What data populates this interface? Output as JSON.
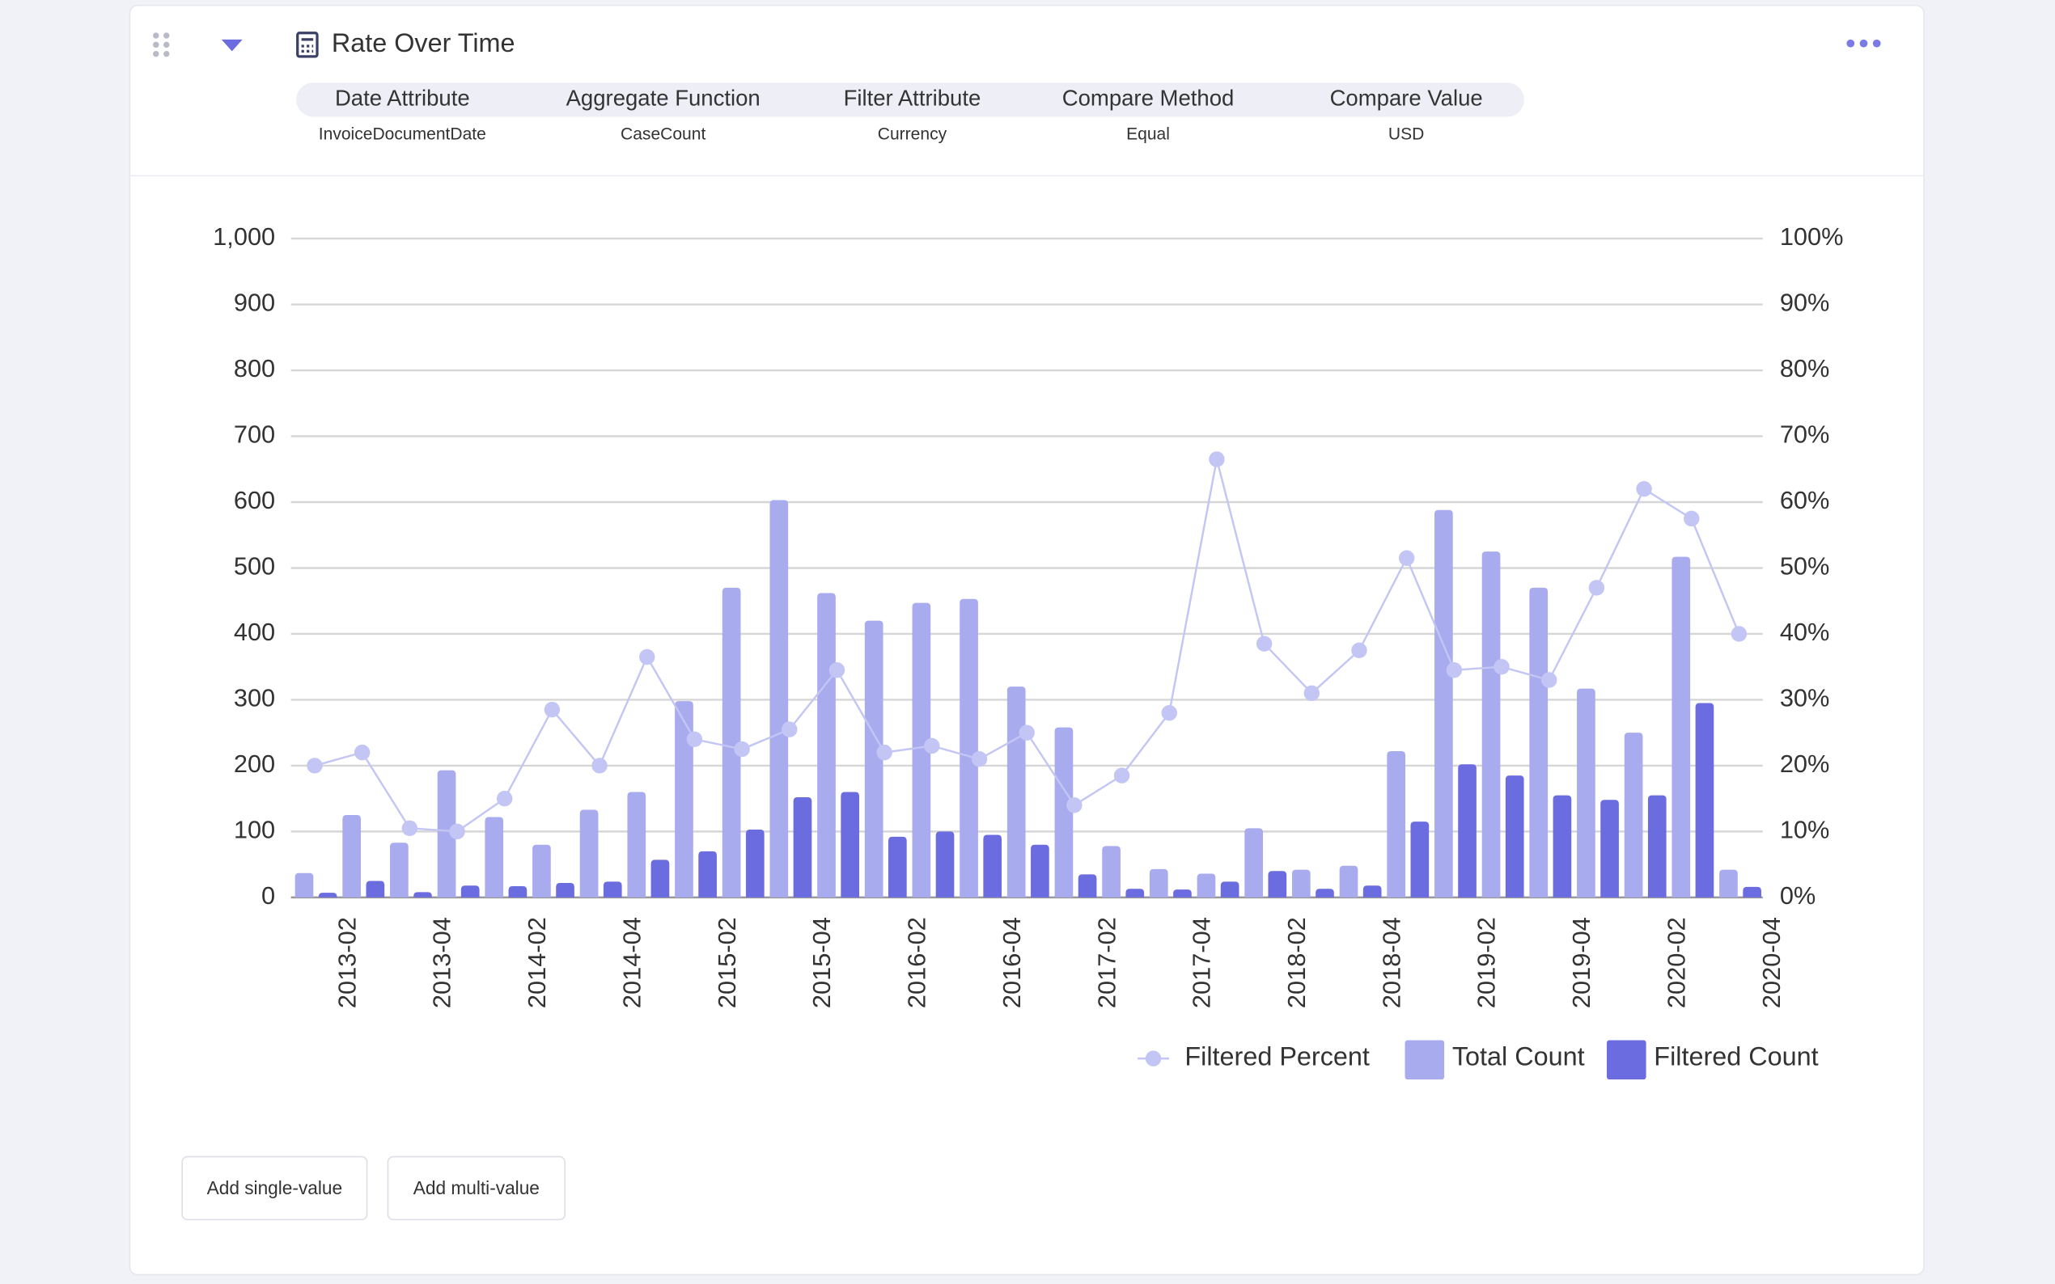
{
  "header": {
    "title": "Rate Over Time",
    "filters": [
      {
        "label": "Date Attribute",
        "value": "InvoiceDocumentDate"
      },
      {
        "label": "Aggregate Function",
        "value": "CaseCount"
      },
      {
        "label": "Filter Attribute",
        "value": "Currency"
      },
      {
        "label": "Compare Method",
        "value": "Equal"
      },
      {
        "label": "Compare Value",
        "value": "USD"
      }
    ]
  },
  "buttons": [
    "Add single-value",
    "Add multi-value"
  ],
  "chart_data": {
    "type": "bar",
    "categories": [
      null,
      "2013-02",
      null,
      "2013-04",
      null,
      "2014-02",
      null,
      "2014-04",
      null,
      "2015-02",
      null,
      "2015-04",
      null,
      "2016-02",
      null,
      "2016-04",
      null,
      "2017-02",
      null,
      "2017-04",
      null,
      "2018-02",
      null,
      "2018-04",
      null,
      "2019-02",
      null,
      "2019-04",
      null,
      "2020-02",
      null,
      "2020-04"
    ],
    "series": [
      {
        "name": "Filtered Percent",
        "type": "line",
        "axis": "y2",
        "color": "#c3c6f4",
        "values": [
          20,
          22,
          10.5,
          10,
          15,
          28.5,
          20,
          36.5,
          24,
          22.5,
          25.5,
          34.5,
          22,
          23,
          21,
          25,
          14,
          18.5,
          28,
          66.5,
          38.5,
          31,
          37.5,
          51.5,
          34.5,
          35,
          33,
          47,
          62,
          57.5,
          40,
          null
        ]
      },
      {
        "name": "Total Count",
        "type": "bar",
        "color": "#a8abee",
        "values": [
          37,
          125,
          83,
          193,
          122,
          80,
          133,
          160,
          298,
          470,
          603,
          462,
          420,
          447,
          453,
          320,
          258,
          78,
          43,
          36,
          105,
          42,
          48,
          222,
          588,
          525,
          470,
          317,
          250,
          517,
          42,
          null
        ]
      },
      {
        "name": "Filtered Count",
        "type": "bar",
        "color": "#6c6ce1",
        "values": [
          7,
          25,
          8,
          18,
          17,
          22,
          24,
          57,
          70,
          103,
          152,
          160,
          92,
          100,
          95,
          80,
          35,
          13,
          12,
          24,
          40,
          13,
          18,
          115,
          202,
          185,
          155,
          148,
          155,
          295,
          16,
          null
        ]
      }
    ],
    "ylim": [
      0,
      1000
    ],
    "yticks": [
      0,
      100,
      200,
      300,
      400,
      500,
      600,
      700,
      800,
      900,
      {
        "value": 1000,
        "label": "1,000"
      }
    ],
    "y2lim": [
      0,
      100
    ],
    "y2ticks": [
      {
        "value": 0,
        "label": "0%"
      },
      {
        "value": 10,
        "label": "10%"
      },
      {
        "value": 20,
        "label": "20%"
      },
      {
        "value": 30,
        "label": "30%"
      },
      {
        "value": 40,
        "label": "40%"
      },
      {
        "value": 50,
        "label": "50%"
      },
      {
        "value": 60,
        "label": "60%"
      },
      {
        "value": 70,
        "label": "70%"
      },
      {
        "value": 80,
        "label": "80%"
      },
      {
        "value": 90,
        "label": "90%"
      },
      {
        "value": 100,
        "label": "100%"
      }
    ],
    "grid": true,
    "legend": "bottom-right"
  }
}
